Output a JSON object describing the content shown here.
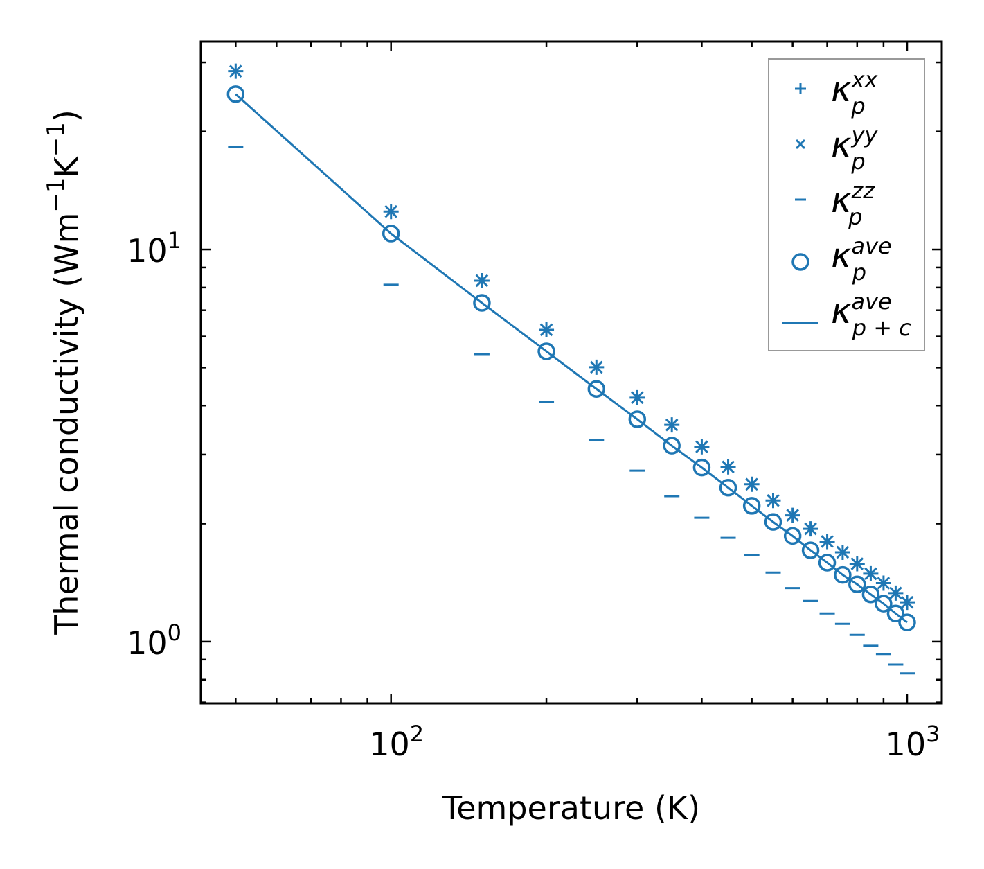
{
  "chart_data": {
    "type": "scatter",
    "title": "",
    "xlabel": "Temperature (K)",
    "ylabel": "Thermal conductivity (Wm",
    "ylabel_parts": [
      "Thermal conductivity (Wm",
      "−1",
      "K",
      "−1",
      ")"
    ],
    "xscale": "log",
    "yscale": "log",
    "xlim": [
      42.8,
      1167
    ],
    "ylim": [
      0.696,
      33.9
    ],
    "grid": false,
    "legend_position": "top-right",
    "xticks": [
      {
        "base": "10",
        "exp": "2",
        "value": 100
      },
      {
        "base": "10",
        "exp": "3",
        "value": 1000
      }
    ],
    "yticks": [
      {
        "base": "10",
        "exp": "0",
        "value": 1
      },
      {
        "base": "10",
        "exp": "1",
        "value": 10
      }
    ],
    "color": "#1f77b4",
    "x": [
      50,
      100,
      150,
      200,
      250,
      300,
      350,
      400,
      450,
      500,
      550,
      600,
      650,
      700,
      750,
      800,
      850,
      900,
      950,
      1000
    ],
    "series": [
      {
        "name": "κ_p^xx",
        "symbol": "κ",
        "sub": "p",
        "sup": "xx",
        "marker": "plus",
        "values": [
          28.5,
          12.5,
          8.33,
          6.24,
          5.01,
          4.19,
          3.57,
          3.14,
          2.79,
          2.52,
          2.29,
          2.1,
          1.94,
          1.8,
          1.69,
          1.58,
          1.49,
          1.41,
          1.33,
          1.26
        ]
      },
      {
        "name": "κ_p^yy",
        "symbol": "κ",
        "sub": "p",
        "sup": "yy",
        "marker": "x",
        "values": [
          28.5,
          12.5,
          8.33,
          6.24,
          5.01,
          4.19,
          3.57,
          3.14,
          2.79,
          2.52,
          2.29,
          2.1,
          1.94,
          1.8,
          1.69,
          1.58,
          1.49,
          1.41,
          1.33,
          1.26
        ]
      },
      {
        "name": "κ_p^zz",
        "symbol": "κ",
        "sub": "p",
        "sup": "zz",
        "marker": "hline",
        "values": [
          18.25,
          8.13,
          5.41,
          4.09,
          3.27,
          2.73,
          2.35,
          2.07,
          1.84,
          1.66,
          1.5,
          1.37,
          1.27,
          1.18,
          1.11,
          1.04,
          0.976,
          0.93,
          0.874,
          0.83
        ]
      },
      {
        "name": "κ_p^ave",
        "symbol": "κ",
        "sub": "p",
        "sup": "ave",
        "marker": "circle",
        "values": [
          24.9,
          10.98,
          7.31,
          5.5,
          4.41,
          3.69,
          3.16,
          2.78,
          2.47,
          2.22,
          2.02,
          1.86,
          1.71,
          1.59,
          1.48,
          1.4,
          1.32,
          1.25,
          1.18,
          1.12
        ]
      },
      {
        "name": "κ_p+c^ave",
        "symbol": "κ",
        "sub": "p + c",
        "sup": "ave",
        "marker": "line",
        "values": [
          24.9,
          10.98,
          7.31,
          5.5,
          4.41,
          3.69,
          3.16,
          2.78,
          2.47,
          2.22,
          2.02,
          1.86,
          1.71,
          1.59,
          1.48,
          1.4,
          1.32,
          1.25,
          1.18,
          1.12
        ]
      }
    ]
  }
}
